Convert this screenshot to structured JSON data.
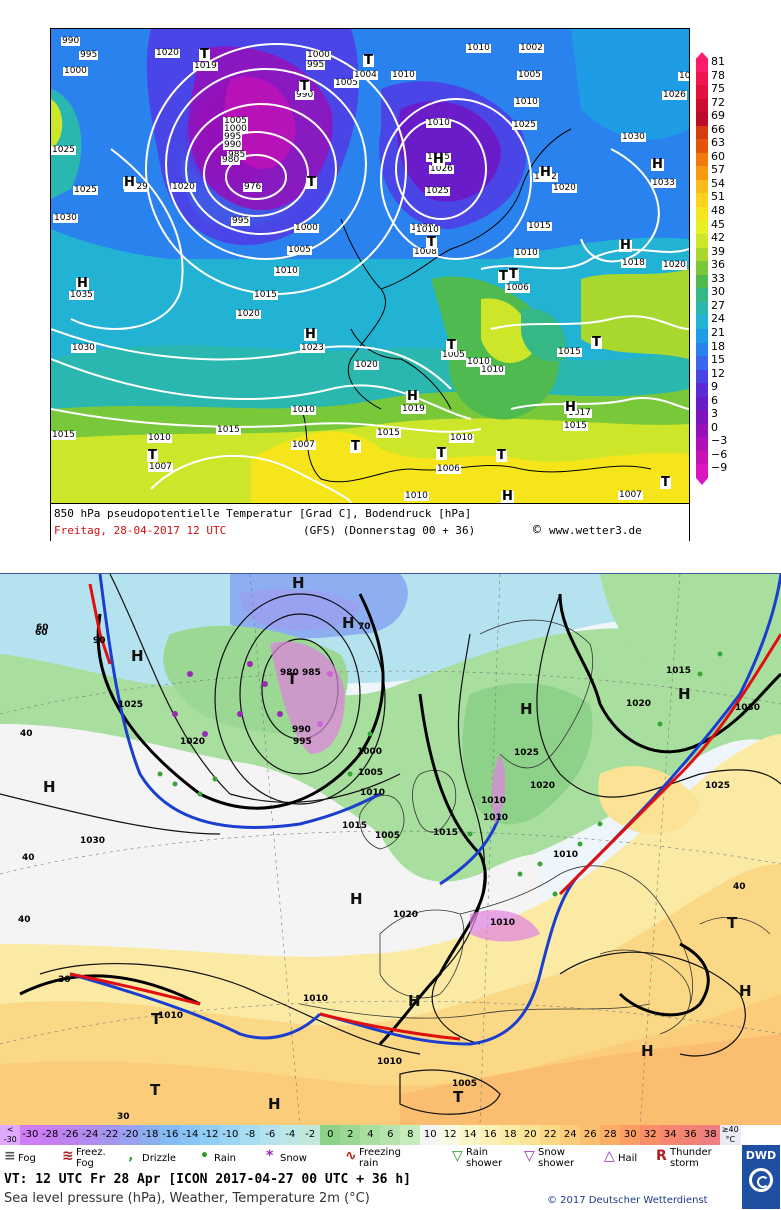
{
  "top": {
    "caption_line1": "850 hPa pseudopotentielle Temperatur [Grad C], Bodendruck [hPa]",
    "caption_line2_date": "Freitag, 28-04-2017  12 UTC",
    "caption_line2_model": "(GFS)  (Donnerstag 00 + 36)",
    "caption_site": "www.wetter3.de",
    "legend": [
      {
        "label": "81",
        "color": "#ff1a6e"
      },
      {
        "label": "78",
        "color": "#f21450"
      },
      {
        "label": "75",
        "color": "#e2103c"
      },
      {
        "label": "72",
        "color": "#cc0c30"
      },
      {
        "label": "69",
        "color": "#bb0d2a"
      },
      {
        "label": "66",
        "color": "#d63e0f"
      },
      {
        "label": "63",
        "color": "#e3560a"
      },
      {
        "label": "60",
        "color": "#f07a0a"
      },
      {
        "label": "57",
        "color": "#f79a10"
      },
      {
        "label": "54",
        "color": "#fcbb1a"
      },
      {
        "label": "51",
        "color": "#fcd21c"
      },
      {
        "label": "48",
        "color": "#f7e51c"
      },
      {
        "label": "45",
        "color": "#e7ef22"
      },
      {
        "label": "42",
        "color": "#cde62a"
      },
      {
        "label": "39",
        "color": "#a8d82e"
      },
      {
        "label": "36",
        "color": "#79c83a"
      },
      {
        "label": "33",
        "color": "#4fba4f"
      },
      {
        "label": "30",
        "color": "#35b786"
      },
      {
        "label": "27",
        "color": "#2ab7b0"
      },
      {
        "label": "24",
        "color": "#22b2d3"
      },
      {
        "label": "21",
        "color": "#1f9ce6"
      },
      {
        "label": "18",
        "color": "#2a82ee"
      },
      {
        "label": "15",
        "color": "#3a66f0"
      },
      {
        "label": "12",
        "color": "#4a45e6"
      },
      {
        "label": "9",
        "color": "#5a2cd8"
      },
      {
        "label": "6",
        "color": "#6a1cc8"
      },
      {
        "label": "3",
        "color": "#7e14bd"
      },
      {
        "label": "0",
        "color": "#9510b8"
      },
      {
        "label": "−3",
        "color": "#b010b8"
      },
      {
        "label": "−6",
        "color": "#c812b8"
      },
      {
        "label": "−9",
        "color": "#dc14c2"
      }
    ],
    "labels": [
      {
        "t": "990"
      },
      {
        "t": "995"
      },
      {
        "t": "1000"
      },
      {
        "t": "1020"
      },
      {
        "t": "1019"
      },
      {
        "t": "1000"
      },
      {
        "t": "995"
      },
      {
        "t": "1005"
      },
      {
        "t": "1004"
      },
      {
        "t": "990"
      },
      {
        "t": "1010"
      },
      {
        "t": "1010"
      },
      {
        "t": "1002"
      },
      {
        "t": "1005"
      },
      {
        "t": "1010"
      },
      {
        "t": "1025"
      },
      {
        "t": "1026"
      },
      {
        "t": "1005"
      },
      {
        "t": "1000"
      },
      {
        "t": "995"
      },
      {
        "t": "990"
      },
      {
        "t": "985"
      },
      {
        "t": "980"
      },
      {
        "t": "976"
      },
      {
        "t": "1025"
      },
      {
        "t": "1029"
      },
      {
        "t": "1020"
      },
      {
        "t": "1010"
      },
      {
        "t": "1015"
      },
      {
        "t": "1026"
      },
      {
        "t": "1025"
      },
      {
        "t": "1022"
      },
      {
        "t": "1020"
      },
      {
        "t": "1033"
      },
      {
        "t": "1030"
      },
      {
        "t": "1030"
      },
      {
        "t": "995"
      },
      {
        "t": "1000"
      },
      {
        "t": "1005"
      },
      {
        "t": "1010"
      },
      {
        "t": "1020"
      },
      {
        "t": "1010"
      },
      {
        "t": "1008"
      },
      {
        "t": "1015"
      },
      {
        "t": "1010"
      },
      {
        "t": "1018"
      },
      {
        "t": "1020"
      },
      {
        "t": "1035"
      },
      {
        "t": "1015"
      },
      {
        "t": "1020"
      },
      {
        "t": "1006"
      },
      {
        "t": "1023"
      },
      {
        "t": "1030"
      },
      {
        "t": "1020"
      },
      {
        "t": "1005"
      },
      {
        "t": "1010"
      },
      {
        "t": "1010"
      },
      {
        "t": "1015"
      },
      {
        "t": "1019"
      },
      {
        "t": "1017"
      },
      {
        "t": "1015"
      },
      {
        "t": "1010"
      },
      {
        "t": "1007"
      },
      {
        "t": "1015"
      },
      {
        "t": "1010"
      },
      {
        "t": "1007"
      },
      {
        "t": "1015"
      },
      {
        "t": "1010"
      },
      {
        "t": "1006"
      },
      {
        "t": "1010"
      },
      {
        "t": "1007"
      },
      {
        "t": "1015"
      },
      {
        "t": "1025"
      },
      {
        "t": "1015"
      }
    ],
    "pressure_symbols": [
      {
        "t": "T"
      },
      {
        "t": "T"
      },
      {
        "t": "T"
      },
      {
        "t": "T"
      },
      {
        "t": "T"
      },
      {
        "t": "H"
      },
      {
        "t": "H"
      },
      {
        "t": "H"
      },
      {
        "t": "H"
      },
      {
        "t": "H"
      },
      {
        "t": "H"
      },
      {
        "t": "T"
      },
      {
        "t": "T"
      },
      {
        "t": "T"
      },
      {
        "t": "T"
      },
      {
        "t": "T"
      },
      {
        "t": "H"
      },
      {
        "t": "H"
      },
      {
        "t": "H"
      },
      {
        "t": "T"
      },
      {
        "t": "T"
      },
      {
        "t": "T"
      },
      {
        "t": "T"
      },
      {
        "t": "H"
      }
    ]
  },
  "bottom": {
    "scale": [
      {
        "label": "<\n-30",
        "color": "#e0a8ff"
      },
      {
        "label": "-30",
        "color": "#d07ef6"
      },
      {
        "label": "-28",
        "color": "#c67ef0"
      },
      {
        "label": "-26",
        "color": "#bb84ee"
      },
      {
        "label": "-24",
        "color": "#b08cee"
      },
      {
        "label": "-22",
        "color": "#a496ef"
      },
      {
        "label": "-20",
        "color": "#98a2f1"
      },
      {
        "label": "-18",
        "color": "#8eaef2"
      },
      {
        "label": "-16",
        "color": "#86baf3"
      },
      {
        "label": "-14",
        "color": "#88c4f4"
      },
      {
        "label": "-12",
        "color": "#90ccf4"
      },
      {
        "label": "-10",
        "color": "#9cd4f4"
      },
      {
        "label": "-8",
        "color": "#a8dcf2"
      },
      {
        "label": "-6",
        "color": "#b4e2ee"
      },
      {
        "label": "-4",
        "color": "#bde6e6"
      },
      {
        "label": "-2",
        "color": "#c2e8da"
      },
      {
        "label": "0",
        "color": "#8ed28a"
      },
      {
        "label": "2",
        "color": "#9ad894"
      },
      {
        "label": "4",
        "color": "#a8de9e"
      },
      {
        "label": "6",
        "color": "#b6e4ac"
      },
      {
        "label": "8",
        "color": "#c6ecbc"
      },
      {
        "label": "10",
        "color": "#f4f4f4"
      },
      {
        "label": "12",
        "color": "#fafae0"
      },
      {
        "label": "14",
        "color": "#fbf6c8"
      },
      {
        "label": "16",
        "color": "#fbf0b6"
      },
      {
        "label": "18",
        "color": "#fbeaa4"
      },
      {
        "label": "20",
        "color": "#fbe294"
      },
      {
        "label": "22",
        "color": "#fbd886"
      },
      {
        "label": "24",
        "color": "#fbcc7a"
      },
      {
        "label": "26",
        "color": "#fbbd70"
      },
      {
        "label": "28",
        "color": "#fbae68"
      },
      {
        "label": "30",
        "color": "#fb9e64"
      },
      {
        "label": "32",
        "color": "#fa8e66"
      },
      {
        "label": "34",
        "color": "#f6866e"
      },
      {
        "label": "36",
        "color": "#f28274"
      },
      {
        "label": "38",
        "color": "#ee7e80"
      },
      {
        "label": "≥40\n°C",
        "color": "#e9ecf5"
      }
    ],
    "weather_legend": [
      {
        "label": "Fog",
        "icon": "fog-icon"
      },
      {
        "label": "Freez.\nFog",
        "icon": "freezing-fog-icon"
      },
      {
        "label": "Drizzle",
        "icon": "drizzle-icon"
      },
      {
        "label": "Rain",
        "icon": "rain-icon"
      },
      {
        "label": "Snow",
        "icon": "snow-icon"
      },
      {
        "label": "Freezing\nrain",
        "icon": "freezing-rain-icon"
      },
      {
        "label": "Rain\nshower",
        "icon": "rain-shower-icon"
      },
      {
        "label": "Snow\nshower",
        "icon": "snow-shower-icon"
      },
      {
        "label": "Hail",
        "icon": "hail-icon"
      },
      {
        "label": "Thunder\nstorm",
        "icon": "thunderstorm-icon"
      }
    ],
    "vt": "VT: 12 UTC Fr 28 Apr [ICON 2017-04-27  00 UTC + 36 h]",
    "desc": "Sea level pressure (hPa), Weather, Temperature 2m (°C)",
    "copyright": "© 2017 Deutscher Wetterdienst",
    "logo": "DWD",
    "labels": [
      {
        "t": "90"
      },
      {
        "t": "60"
      },
      {
        "t": "1025"
      },
      {
        "t": "1020"
      },
      {
        "t": "40"
      },
      {
        "t": "1030"
      },
      {
        "t": "40"
      },
      {
        "t": "990"
      },
      {
        "t": "995"
      },
      {
        "t": "985"
      },
      {
        "t": "980"
      },
      {
        "t": "1000"
      },
      {
        "t": "1005"
      },
      {
        "t": "1010"
      },
      {
        "t": "1015"
      },
      {
        "t": "1015"
      },
      {
        "t": "1025"
      },
      {
        "t": "1020"
      },
      {
        "t": "1010"
      },
      {
        "t": "1010"
      },
      {
        "t": "1020"
      },
      {
        "t": "1010"
      },
      {
        "t": "1005"
      },
      {
        "t": "1015"
      },
      {
        "t": "1020"
      },
      {
        "t": "1030"
      },
      {
        "t": "1025"
      },
      {
        "t": "1010"
      },
      {
        "t": "1010"
      },
      {
        "t": "1005"
      },
      {
        "t": "1010"
      },
      {
        "t": "1010"
      },
      {
        "t": "30"
      },
      {
        "t": "30"
      },
      {
        "t": "40"
      },
      {
        "t": "40"
      },
      {
        "t": "60"
      },
      {
        "t": "70"
      }
    ],
    "pressure_symbols": [
      {
        "t": "H"
      },
      {
        "t": "H"
      },
      {
        "t": "H"
      },
      {
        "t": "H"
      },
      {
        "t": "T"
      },
      {
        "t": "H"
      },
      {
        "t": "H"
      },
      {
        "t": "H"
      },
      {
        "t": "H"
      },
      {
        "t": "T"
      },
      {
        "t": "T"
      },
      {
        "t": "T"
      },
      {
        "t": "H"
      },
      {
        "t": "T"
      },
      {
        "t": "H"
      },
      {
        "t": "H"
      }
    ]
  }
}
